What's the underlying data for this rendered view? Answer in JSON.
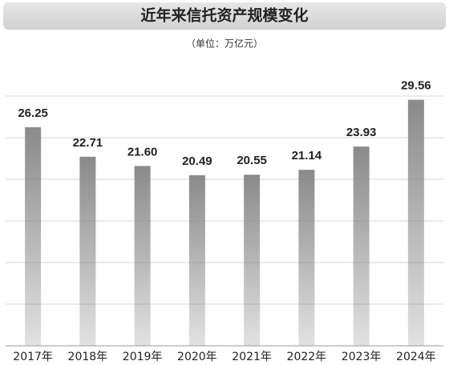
{
  "chart_data": {
    "type": "bar",
    "title": "近年来信托资产规模变化",
    "subtitle": "（单位：万亿元）",
    "categories": [
      "2017年",
      "2018年",
      "2019年",
      "2020年",
      "2021年",
      "2022年",
      "2023年",
      "2024年"
    ],
    "values": [
      26.25,
      22.71,
      21.6,
      20.49,
      20.55,
      21.14,
      23.93,
      29.56
    ],
    "value_labels": [
      "26.25",
      "22.71",
      "21.60",
      "20.49",
      "20.55",
      "21.14",
      "23.93",
      "29.56"
    ],
    "color": "#8a8a8a",
    "ylim": [
      0,
      30
    ],
    "yticks": [
      0,
      5,
      10,
      15,
      20,
      25,
      30
    ],
    "grid": true
  }
}
